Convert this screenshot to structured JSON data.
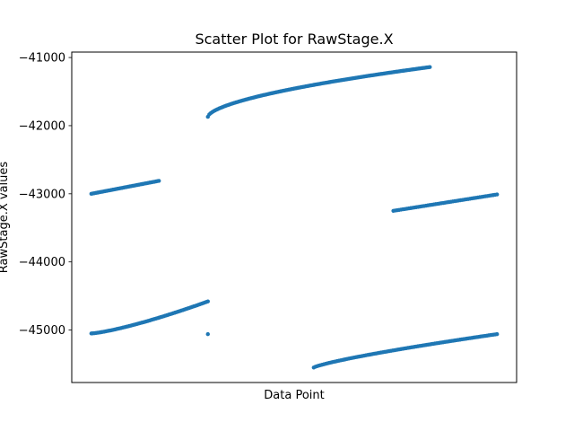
{
  "chart_data": {
    "type": "scatter",
    "title": "Scatter Plot for RawStage.X",
    "xlabel": "Data Point",
    "ylabel": "RawStage.X values",
    "ylim": [
      -45770,
      -40920
    ],
    "xlim": [
      0,
      100
    ],
    "yticks": [
      -41000,
      -42000,
      -43000,
      -44000,
      -45000
    ],
    "ytick_labels": [
      "−41000",
      "−42000",
      "−43000",
      "−44000",
      "−45000"
    ],
    "xticks_shown": false,
    "grid": false,
    "legend": "none",
    "marker_color": "#1f77b4",
    "segments": [
      {
        "x_start": 4.4,
        "x_end": 19.6,
        "y_start": -43000,
        "y_end": -42810,
        "points": 45,
        "curve": 1.0
      },
      {
        "x_start": 4.4,
        "x_end": 30.6,
        "y_start": -45050,
        "y_end": -44580,
        "points": 75,
        "curve": 1.3
      },
      {
        "x_start": 30.6,
        "x_end": 80.5,
        "y_start": -41870,
        "y_end": -41140,
        "points": 160,
        "curve": 0.6
      },
      {
        "x_start": 72.3,
        "x_end": 95.6,
        "y_start": -43250,
        "y_end": -43010,
        "points": 55,
        "curve": 1.0
      },
      {
        "x_start": 54.4,
        "x_end": 95.6,
        "y_start": -45550,
        "y_end": -45060,
        "points": 110,
        "curve": 0.8
      }
    ],
    "outliers": [
      {
        "x": 30.6,
        "y": -45060
      }
    ]
  }
}
